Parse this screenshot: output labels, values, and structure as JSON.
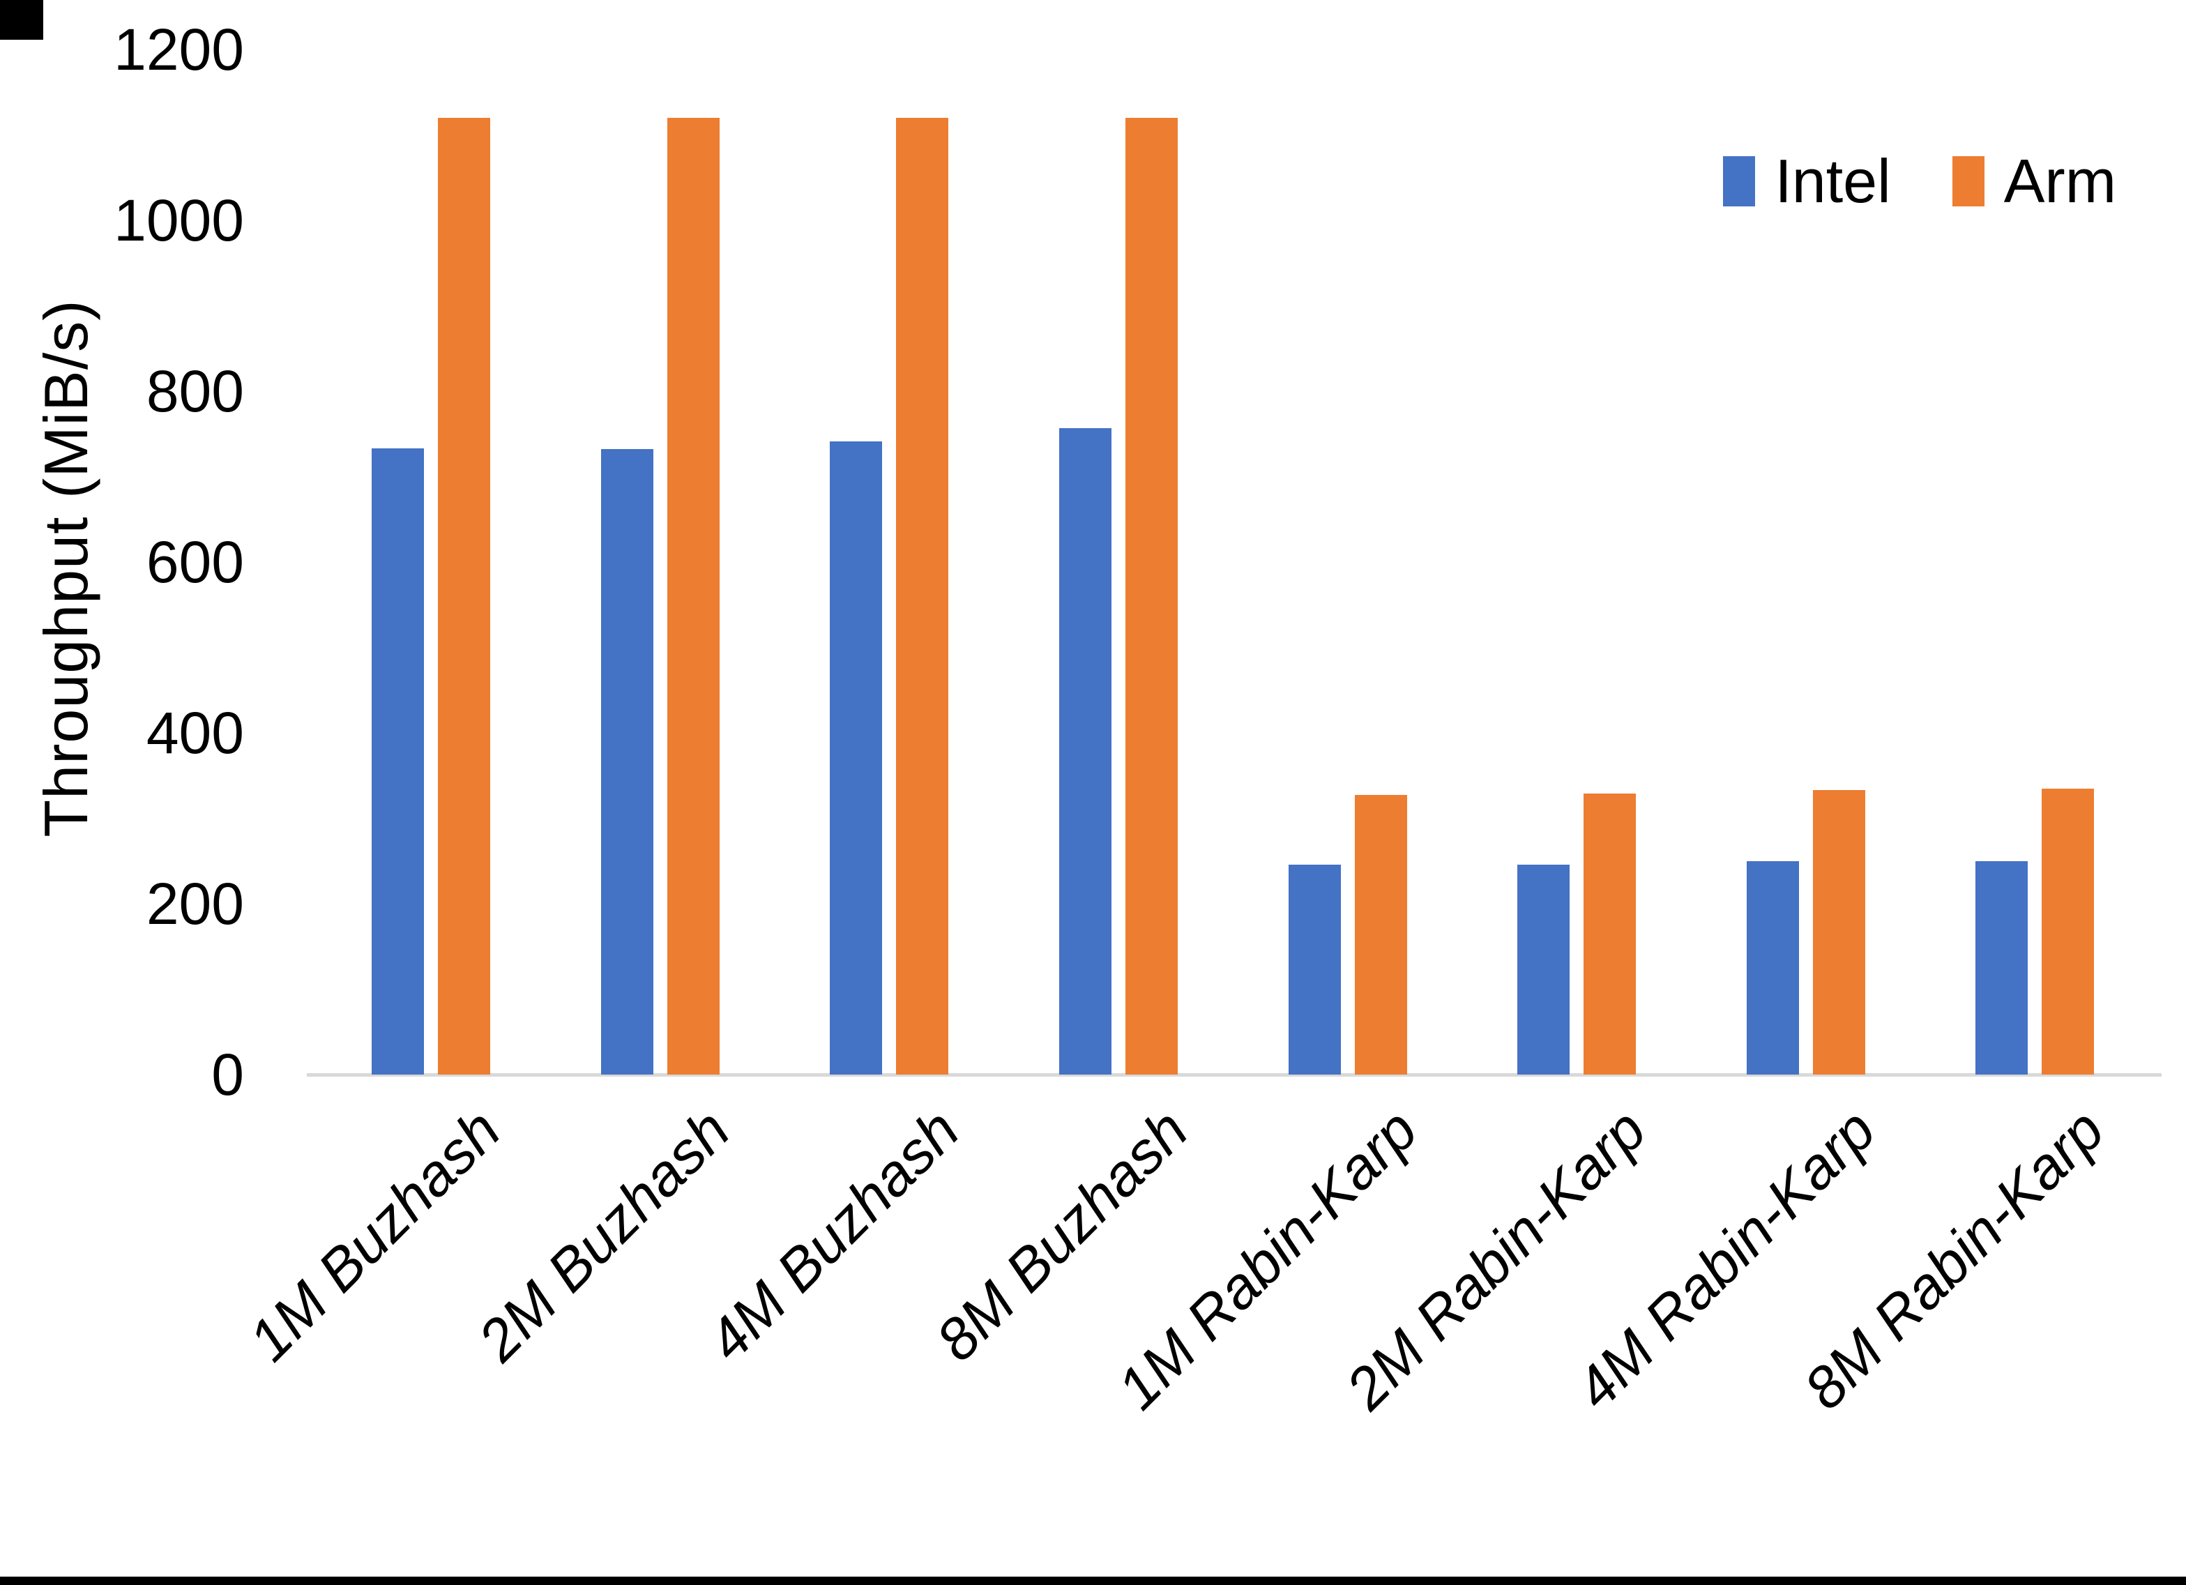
{
  "chart_data": {
    "type": "bar",
    "title": "",
    "categories": [
      "1M Buzhash",
      "2M Buzhash",
      "4M Buzhash",
      "8M Buzhash",
      "1M Rabin-Karp",
      "2M Rabin-Karp",
      "4M Rabin-Karp",
      "8M Rabin-Karp"
    ],
    "series": [
      {
        "name": "Intel",
        "color": "#4472C4",
        "values": [
          733,
          732,
          741,
          757,
          246,
          246,
          250,
          250
        ]
      },
      {
        "name": "Arm",
        "color": "#ED7D31",
        "values": [
          1120,
          1120,
          1120,
          1120,
          327,
          329,
          333,
          335
        ]
      }
    ],
    "xlabel": "",
    "ylabel": "Throughput (MiB/s)",
    "ylim": [
      0,
      1200
    ],
    "yticks": [
      0,
      200,
      400,
      600,
      800,
      1000,
      1200
    ],
    "grid": false,
    "legend_position": "top-right",
    "axis_line_color": "#D9D9D9"
  }
}
